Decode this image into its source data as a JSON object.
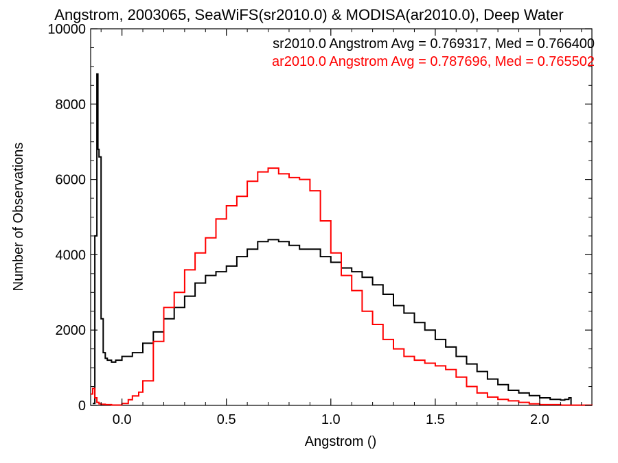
{
  "chart_data": {
    "type": "line",
    "title": "Angstrom, 2003065, SeaWiFS(sr2010.0) & MODISA(ar2010.0), Deep Water",
    "xlabel": "Angstrom ()",
    "ylabel": "Number of Observations",
    "xlim": [
      -0.15,
      2.25
    ],
    "ylim": [
      0,
      10000
    ],
    "x_ticks": [
      0.0,
      0.5,
      1.0,
      1.5,
      2.0
    ],
    "x_tick_labels": [
      "0.0",
      "0.5",
      "1.0",
      "1.5",
      "2.0"
    ],
    "y_ticks": [
      0,
      2000,
      4000,
      6000,
      8000,
      10000
    ],
    "y_tick_labels": [
      "0",
      "2000",
      "4000",
      "6000",
      "8000",
      "10000"
    ],
    "legend_position": "top-right",
    "annotations": [
      {
        "text": "sr2010.0 Angstrom Avg = 0.769317, Med = 0.766400",
        "color": "#000000"
      },
      {
        "text": "ar2010.0 Angstrom Avg = 0.787696, Med = 0.765502",
        "color": "#ff0000"
      }
    ],
    "series": [
      {
        "name": "sr2010.0",
        "color": "#000000",
        "x": [
          -0.14,
          -0.13,
          -0.12,
          -0.115,
          -0.11,
          -0.1,
          -0.09,
          -0.08,
          -0.07,
          -0.05,
          -0.03,
          0.0,
          0.05,
          0.1,
          0.15,
          0.2,
          0.25,
          0.3,
          0.35,
          0.4,
          0.45,
          0.5,
          0.55,
          0.6,
          0.65,
          0.7,
          0.75,
          0.8,
          0.85,
          0.9,
          0.95,
          1.0,
          1.05,
          1.1,
          1.15,
          1.2,
          1.25,
          1.3,
          1.35,
          1.4,
          1.45,
          1.5,
          1.55,
          1.6,
          1.65,
          1.7,
          1.75,
          1.8,
          1.85,
          1.9,
          1.95,
          2.0,
          2.05,
          2.1,
          2.12,
          2.14,
          2.15
        ],
        "y": [
          50,
          4500,
          8800,
          6800,
          6600,
          2300,
          1400,
          1250,
          1200,
          1150,
          1200,
          1300,
          1400,
          1650,
          1950,
          2300,
          2600,
          2900,
          3250,
          3450,
          3550,
          3700,
          3950,
          4150,
          4350,
          4400,
          4350,
          4250,
          4150,
          4150,
          3950,
          3800,
          3650,
          3550,
          3400,
          3200,
          2950,
          2650,
          2450,
          2200,
          2000,
          1750,
          1550,
          1300,
          1100,
          900,
          700,
          550,
          400,
          330,
          260,
          200,
          160,
          140,
          160,
          200,
          0
        ]
      },
      {
        "name": "ar2010.0",
        "color": "#ff0000",
        "x": [
          -0.15,
          -0.14,
          -0.13,
          -0.12,
          -0.11,
          -0.1,
          -0.08,
          -0.05,
          0.0,
          0.03,
          0.05,
          0.08,
          0.1,
          0.15,
          0.2,
          0.25,
          0.3,
          0.35,
          0.4,
          0.45,
          0.5,
          0.55,
          0.6,
          0.65,
          0.7,
          0.75,
          0.8,
          0.85,
          0.9,
          0.95,
          1.0,
          1.05,
          1.1,
          1.15,
          1.2,
          1.25,
          1.3,
          1.35,
          1.4,
          1.45,
          1.5,
          1.55,
          1.6,
          1.65,
          1.7,
          1.75,
          1.8,
          1.85,
          1.9,
          1.95,
          2.0,
          2.1,
          2.25
        ],
        "y": [
          300,
          450,
          200,
          80,
          40,
          30,
          20,
          10,
          50,
          150,
          250,
          350,
          650,
          1700,
          2600,
          3000,
          3600,
          4050,
          4450,
          4950,
          5300,
          5550,
          5950,
          6200,
          6300,
          6150,
          6050,
          6000,
          5700,
          4900,
          4050,
          3450,
          3050,
          2500,
          2150,
          1750,
          1500,
          1300,
          1200,
          1120,
          1050,
          950,
          750,
          500,
          330,
          220,
          160,
          120,
          80,
          40,
          20,
          8,
          5
        ]
      }
    ]
  }
}
